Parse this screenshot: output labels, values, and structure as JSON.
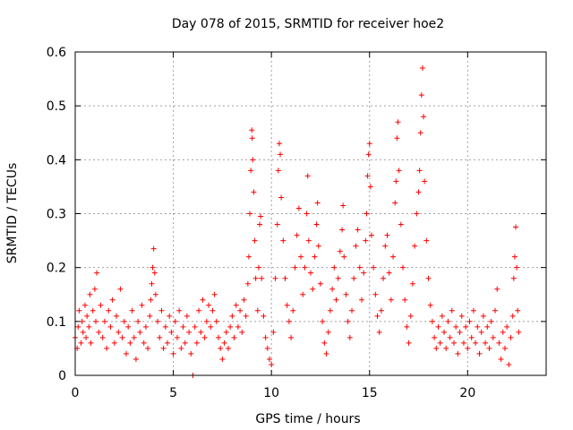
{
  "chart_data": {
    "type": "scatter",
    "title": "Day 078 of 2015, SRMTID for receiver hoe2",
    "xlabel": "GPS time / hours",
    "ylabel": "SRMTID / TECUs",
    "xlim": [
      0,
      24
    ],
    "ylim": [
      0,
      0.6
    ],
    "x_ticks": [
      0,
      5,
      10,
      15,
      20
    ],
    "x_tick_labels": [
      "0",
      "5",
      "10",
      "15",
      "20"
    ],
    "y_ticks": [
      0,
      0.1,
      0.2,
      0.3,
      0.4,
      0.5,
      0.6
    ],
    "y_tick_labels": [
      "0",
      "0.1",
      "0.2",
      "0.3",
      "0.4",
      "0.5",
      "0.6"
    ],
    "grid": true,
    "marker": "+",
    "color": "#ff0000",
    "series": [
      {
        "name": "SRMTID",
        "points": [
          [
            0.0,
            0.07
          ],
          [
            0.1,
            0.05
          ],
          [
            0.15,
            0.09
          ],
          [
            0.2,
            0.12
          ],
          [
            0.3,
            0.06
          ],
          [
            0.35,
            0.1
          ],
          [
            0.4,
            0.08
          ],
          [
            0.5,
            0.13
          ],
          [
            0.55,
            0.07
          ],
          [
            0.6,
            0.11
          ],
          [
            0.7,
            0.09
          ],
          [
            0.75,
            0.15
          ],
          [
            0.8,
            0.06
          ],
          [
            0.9,
            0.12
          ],
          [
            1.0,
            0.16
          ],
          [
            1.05,
            0.1
          ],
          [
            1.1,
            0.19
          ],
          [
            1.2,
            0.08
          ],
          [
            1.3,
            0.13
          ],
          [
            1.4,
            0.07
          ],
          [
            1.5,
            0.1
          ],
          [
            1.6,
            0.05
          ],
          [
            1.7,
            0.12
          ],
          [
            1.8,
            0.09
          ],
          [
            1.9,
            0.14
          ],
          [
            2.0,
            0.06
          ],
          [
            2.1,
            0.11
          ],
          [
            2.2,
            0.08
          ],
          [
            2.3,
            0.16
          ],
          [
            2.4,
            0.07
          ],
          [
            2.5,
            0.1
          ],
          [
            2.6,
            0.04
          ],
          [
            2.7,
            0.09
          ],
          [
            2.8,
            0.06
          ],
          [
            2.9,
            0.12
          ],
          [
            3.0,
            0.07
          ],
          [
            3.1,
            0.03
          ],
          [
            3.2,
            0.1
          ],
          [
            3.3,
            0.08
          ],
          [
            3.4,
            0.13
          ],
          [
            3.5,
            0.06
          ],
          [
            3.6,
            0.09
          ],
          [
            3.7,
            0.05
          ],
          [
            3.8,
            0.11
          ],
          [
            3.85,
            0.14
          ],
          [
            3.9,
            0.17
          ],
          [
            3.95,
            0.2
          ],
          [
            4.0,
            0.235
          ],
          [
            4.05,
            0.19
          ],
          [
            4.1,
            0.15
          ],
          [
            4.2,
            0.1
          ],
          [
            4.3,
            0.07
          ],
          [
            4.4,
            0.12
          ],
          [
            4.5,
            0.05
          ],
          [
            4.6,
            0.09
          ],
          [
            4.7,
            0.06
          ],
          [
            4.8,
            0.11
          ],
          [
            4.9,
            0.08
          ],
          [
            5.0,
            0.04
          ],
          [
            5.1,
            0.1
          ],
          [
            5.2,
            0.07
          ],
          [
            5.3,
            0.12
          ],
          [
            5.4,
            0.05
          ],
          [
            5.5,
            0.09
          ],
          [
            5.6,
            0.06
          ],
          [
            5.7,
            0.11
          ],
          [
            5.8,
            0.08
          ],
          [
            5.9,
            0.04
          ],
          [
            6.0,
            0.0
          ],
          [
            6.1,
            0.09
          ],
          [
            6.2,
            0.06
          ],
          [
            6.3,
            0.12
          ],
          [
            6.4,
            0.08
          ],
          [
            6.5,
            0.14
          ],
          [
            6.6,
            0.07
          ],
          [
            6.7,
            0.1
          ],
          [
            6.8,
            0.13
          ],
          [
            6.9,
            0.09
          ],
          [
            7.0,
            0.12
          ],
          [
            7.1,
            0.15
          ],
          [
            7.2,
            0.1
          ],
          [
            7.3,
            0.07
          ],
          [
            7.4,
            0.05
          ],
          [
            7.5,
            0.03
          ],
          [
            7.6,
            0.06
          ],
          [
            7.7,
            0.08
          ],
          [
            7.8,
            0.05
          ],
          [
            7.9,
            0.09
          ],
          [
            8.0,
            0.11
          ],
          [
            8.1,
            0.07
          ],
          [
            8.2,
            0.13
          ],
          [
            8.3,
            0.09
          ],
          [
            8.4,
            0.12
          ],
          [
            8.5,
            0.08
          ],
          [
            8.6,
            0.14
          ],
          [
            8.7,
            0.11
          ],
          [
            8.8,
            0.17
          ],
          [
            8.85,
            0.22
          ],
          [
            8.9,
            0.3
          ],
          [
            8.95,
            0.38
          ],
          [
            9.0,
            0.455
          ],
          [
            9.02,
            0.44
          ],
          [
            9.05,
            0.4
          ],
          [
            9.1,
            0.34
          ],
          [
            9.15,
            0.25
          ],
          [
            9.2,
            0.18
          ],
          [
            9.3,
            0.12
          ],
          [
            9.35,
            0.2
          ],
          [
            9.4,
            0.28
          ],
          [
            9.45,
            0.295
          ],
          [
            9.5,
            0.18
          ],
          [
            9.6,
            0.11
          ],
          [
            9.7,
            0.07
          ],
          [
            9.8,
            0.05
          ],
          [
            9.9,
            0.03
          ],
          [
            10.0,
            0.02
          ],
          [
            10.1,
            0.08
          ],
          [
            10.2,
            0.18
          ],
          [
            10.3,
            0.28
          ],
          [
            10.35,
            0.38
          ],
          [
            10.4,
            0.43
          ],
          [
            10.45,
            0.41
          ],
          [
            10.5,
            0.33
          ],
          [
            10.6,
            0.25
          ],
          [
            10.7,
            0.18
          ],
          [
            10.8,
            0.13
          ],
          [
            10.9,
            0.1
          ],
          [
            11.0,
            0.07
          ],
          [
            11.1,
            0.12
          ],
          [
            11.2,
            0.2
          ],
          [
            11.3,
            0.26
          ],
          [
            11.4,
            0.31
          ],
          [
            11.5,
            0.22
          ],
          [
            11.6,
            0.15
          ],
          [
            11.7,
            0.2
          ],
          [
            11.8,
            0.3
          ],
          [
            11.85,
            0.37
          ],
          [
            11.9,
            0.25
          ],
          [
            12.0,
            0.19
          ],
          [
            12.1,
            0.16
          ],
          [
            12.2,
            0.22
          ],
          [
            12.3,
            0.28
          ],
          [
            12.35,
            0.32
          ],
          [
            12.4,
            0.24
          ],
          [
            12.5,
            0.17
          ],
          [
            12.6,
            0.1
          ],
          [
            12.7,
            0.06
          ],
          [
            12.8,
            0.04
          ],
          [
            12.9,
            0.08
          ],
          [
            13.0,
            0.12
          ],
          [
            13.1,
            0.16
          ],
          [
            13.2,
            0.2
          ],
          [
            13.3,
            0.14
          ],
          [
            13.4,
            0.18
          ],
          [
            13.5,
            0.23
          ],
          [
            13.6,
            0.27
          ],
          [
            13.65,
            0.315
          ],
          [
            13.7,
            0.22
          ],
          [
            13.8,
            0.15
          ],
          [
            13.9,
            0.1
          ],
          [
            14.0,
            0.07
          ],
          [
            14.1,
            0.12
          ],
          [
            14.2,
            0.18
          ],
          [
            14.3,
            0.24
          ],
          [
            14.4,
            0.27
          ],
          [
            14.5,
            0.2
          ],
          [
            14.6,
            0.14
          ],
          [
            14.7,
            0.19
          ],
          [
            14.8,
            0.25
          ],
          [
            14.85,
            0.3
          ],
          [
            14.9,
            0.37
          ],
          [
            14.95,
            0.41
          ],
          [
            15.0,
            0.43
          ],
          [
            15.05,
            0.35
          ],
          [
            15.1,
            0.26
          ],
          [
            15.2,
            0.2
          ],
          [
            15.3,
            0.15
          ],
          [
            15.4,
            0.11
          ],
          [
            15.5,
            0.08
          ],
          [
            15.6,
            0.12
          ],
          [
            15.7,
            0.18
          ],
          [
            15.8,
            0.24
          ],
          [
            15.9,
            0.26
          ],
          [
            16.0,
            0.19
          ],
          [
            16.1,
            0.14
          ],
          [
            16.2,
            0.22
          ],
          [
            16.3,
            0.32
          ],
          [
            16.35,
            0.36
          ],
          [
            16.4,
            0.44
          ],
          [
            16.45,
            0.47
          ],
          [
            16.5,
            0.38
          ],
          [
            16.6,
            0.28
          ],
          [
            16.7,
            0.2
          ],
          [
            16.8,
            0.14
          ],
          [
            16.9,
            0.09
          ],
          [
            17.0,
            0.06
          ],
          [
            17.1,
            0.11
          ],
          [
            17.2,
            0.17
          ],
          [
            17.3,
            0.24
          ],
          [
            17.4,
            0.3
          ],
          [
            17.5,
            0.34
          ],
          [
            17.55,
            0.38
          ],
          [
            17.6,
            0.45
          ],
          [
            17.65,
            0.52
          ],
          [
            17.7,
            0.57
          ],
          [
            17.75,
            0.48
          ],
          [
            17.8,
            0.36
          ],
          [
            17.9,
            0.25
          ],
          [
            18.0,
            0.18
          ],
          [
            18.1,
            0.13
          ],
          [
            18.2,
            0.1
          ],
          [
            18.3,
            0.07
          ],
          [
            18.4,
            0.05
          ],
          [
            18.5,
            0.09
          ],
          [
            18.6,
            0.06
          ],
          [
            18.7,
            0.11
          ],
          [
            18.8,
            0.08
          ],
          [
            18.9,
            0.05
          ],
          [
            19.0,
            0.1
          ],
          [
            19.1,
            0.07
          ],
          [
            19.2,
            0.12
          ],
          [
            19.3,
            0.06
          ],
          [
            19.4,
            0.09
          ],
          [
            19.5,
            0.04
          ],
          [
            19.6,
            0.08
          ],
          [
            19.7,
            0.11
          ],
          [
            19.8,
            0.06
          ],
          [
            19.9,
            0.09
          ],
          [
            20.0,
            0.05
          ],
          [
            20.1,
            0.1
          ],
          [
            20.2,
            0.07
          ],
          [
            20.3,
            0.12
          ],
          [
            20.4,
            0.06
          ],
          [
            20.5,
            0.09
          ],
          [
            20.6,
            0.04
          ],
          [
            20.7,
            0.08
          ],
          [
            20.8,
            0.11
          ],
          [
            20.9,
            0.06
          ],
          [
            21.0,
            0.09
          ],
          [
            21.1,
            0.05
          ],
          [
            21.2,
            0.1
          ],
          [
            21.3,
            0.07
          ],
          [
            21.4,
            0.12
          ],
          [
            21.5,
            0.16
          ],
          [
            21.6,
            0.06
          ],
          [
            21.7,
            0.03
          ],
          [
            21.8,
            0.08
          ],
          [
            21.9,
            0.05
          ],
          [
            22.0,
            0.09
          ],
          [
            22.1,
            0.02
          ],
          [
            22.2,
            0.07
          ],
          [
            22.3,
            0.11
          ],
          [
            22.35,
            0.18
          ],
          [
            22.4,
            0.22
          ],
          [
            22.45,
            0.275
          ],
          [
            22.5,
            0.2
          ],
          [
            22.55,
            0.12
          ],
          [
            22.6,
            0.08
          ]
        ]
      }
    ]
  }
}
